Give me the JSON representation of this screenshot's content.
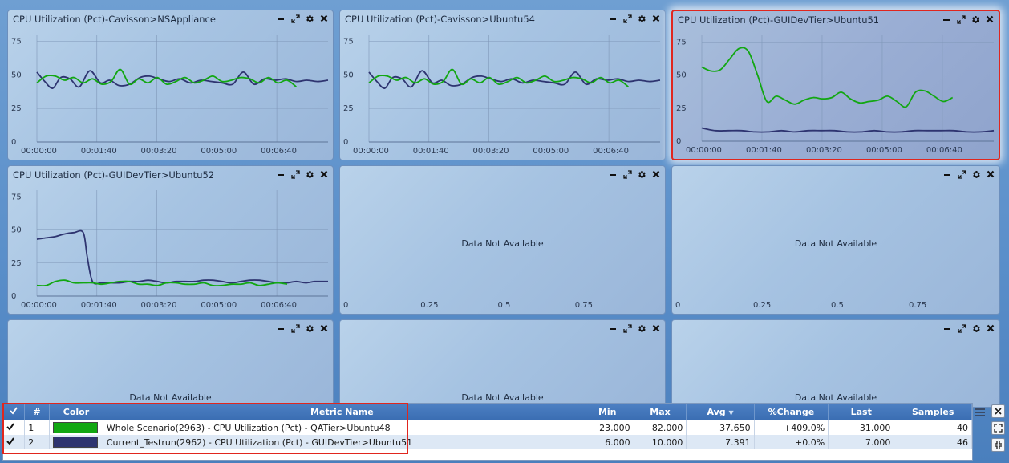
{
  "colors": {
    "series_green": "#12a712",
    "series_navy": "#2e3470",
    "highlight": "#e0261e"
  },
  "icons": {
    "minimize": "minimize-icon",
    "expand": "expand-icon",
    "settings": "gear-icon",
    "close": "close-icon",
    "menu": "menu-icon"
  },
  "panels": [
    {
      "title": "CPU Utilization (Pct)-Cavisson>NSAppliance"
    },
    {
      "title": "CPU Utilization (Pct)-Cavisson>Ubuntu54"
    },
    {
      "title": "CPU Utilization (Pct)-GUIDevTier>Ubuntu51"
    },
    {
      "title": "CPU Utilization (Pct)-GUIDevTier>Ubuntu52"
    },
    {
      "title": "",
      "message": "Data Not Available"
    },
    {
      "title": "",
      "message": "Data Not Available"
    },
    {
      "title": "",
      "message": "Data Not Available"
    },
    {
      "title": "",
      "message": "Data Not Available"
    },
    {
      "title": "",
      "message": "Data Not Available"
    }
  ],
  "chart_data": [
    {
      "type": "line",
      "panel": 0,
      "x_ticks": [
        "00:00:00",
        "00:01:40",
        "00:03:20",
        "00:05:00",
        "00:06:40"
      ],
      "y_ticks": [
        "0",
        "25",
        "50",
        "75"
      ],
      "ylim": [
        0,
        80
      ],
      "xlim": [
        0,
        440
      ],
      "series": [
        {
          "color": "#2e3470",
          "x": [
            0,
            12,
            24,
            36,
            50,
            64,
            80,
            96,
            110,
            124,
            140,
            156,
            170,
            184,
            200,
            216,
            232,
            248,
            264,
            280,
            296,
            312,
            328,
            344,
            360,
            376,
            392,
            408,
            424,
            440
          ],
          "y": [
            52,
            45,
            40,
            48,
            47,
            41,
            53,
            44,
            46,
            42,
            43,
            48,
            49,
            47,
            45,
            47,
            44,
            46,
            45,
            44,
            43,
            52,
            43,
            47,
            46,
            47,
            45,
            46,
            45,
            46
          ]
        },
        {
          "color": "#12a712",
          "x": [
            0,
            14,
            28,
            42,
            56,
            70,
            84,
            98,
            112,
            126,
            140,
            154,
            168,
            182,
            196,
            210,
            224,
            238,
            252,
            266,
            280,
            294,
            308,
            322,
            336,
            350,
            364,
            378,
            392
          ],
          "y": [
            44,
            49,
            49,
            46,
            48,
            44,
            47,
            43,
            45,
            54,
            43,
            47,
            44,
            48,
            43,
            45,
            48,
            44,
            46,
            49,
            45,
            46,
            48,
            47,
            44,
            48,
            44,
            46,
            41
          ]
        }
      ]
    },
    {
      "type": "line",
      "panel": 1,
      "x_ticks": [
        "00:00:00",
        "00:01:40",
        "00:03:20",
        "00:05:00",
        "00:06:40"
      ],
      "y_ticks": [
        "0",
        "25",
        "50",
        "75"
      ],
      "ylim": [
        0,
        80
      ],
      "xlim": [
        0,
        440
      ],
      "series": [
        {
          "color": "#2e3470",
          "x": [
            0,
            12,
            24,
            36,
            50,
            64,
            80,
            96,
            110,
            124,
            140,
            156,
            170,
            184,
            200,
            216,
            232,
            248,
            264,
            280,
            296,
            312,
            328,
            344,
            360,
            376,
            392,
            408,
            424,
            440
          ],
          "y": [
            52,
            45,
            40,
            48,
            47,
            41,
            53,
            44,
            46,
            42,
            43,
            48,
            49,
            47,
            45,
            47,
            44,
            46,
            45,
            44,
            43,
            52,
            43,
            47,
            46,
            47,
            45,
            46,
            45,
            46
          ]
        },
        {
          "color": "#12a712",
          "x": [
            0,
            14,
            28,
            42,
            56,
            70,
            84,
            98,
            112,
            126,
            140,
            154,
            168,
            182,
            196,
            210,
            224,
            238,
            252,
            266,
            280,
            294,
            308,
            322,
            336,
            350,
            364,
            378,
            392
          ],
          "y": [
            44,
            49,
            49,
            46,
            48,
            44,
            47,
            43,
            45,
            54,
            43,
            47,
            44,
            48,
            43,
            45,
            48,
            44,
            46,
            49,
            45,
            46,
            48,
            47,
            44,
            48,
            44,
            46,
            41
          ]
        }
      ]
    },
    {
      "type": "line",
      "panel": 2,
      "x_ticks": [
        "00:00:00",
        "00:01:40",
        "00:03:20",
        "00:05:00",
        "00:06:40"
      ],
      "y_ticks": [
        "0",
        "25",
        "50",
        "75"
      ],
      "ylim": [
        0,
        80
      ],
      "xlim": [
        0,
        440
      ],
      "series": [
        {
          "color": "#12a712",
          "x": [
            0,
            14,
            28,
            42,
            56,
            70,
            84,
            98,
            112,
            126,
            140,
            154,
            168,
            182,
            196,
            210,
            224,
            238,
            252,
            266,
            280,
            294,
            308,
            322,
            336,
            350,
            364,
            378
          ],
          "y": [
            56,
            53,
            54,
            62,
            70,
            68,
            50,
            30,
            34,
            31,
            28,
            31,
            33,
            32,
            33,
            37,
            32,
            29,
            30,
            31,
            34,
            30,
            26,
            37,
            38,
            34,
            30,
            33
          ]
        },
        {
          "color": "#2e3470",
          "x": [
            0,
            20,
            40,
            60,
            80,
            100,
            120,
            140,
            160,
            180,
            200,
            220,
            240,
            260,
            280,
            300,
            320,
            340,
            360,
            380,
            400,
            420,
            440
          ],
          "y": [
            10,
            8,
            8,
            8,
            7,
            7,
            8,
            7,
            8,
            8,
            8,
            7,
            7,
            8,
            7,
            7,
            8,
            8,
            8,
            8,
            7,
            7,
            8
          ]
        }
      ]
    },
    {
      "type": "line",
      "panel": 3,
      "x_ticks": [
        "00:00:00",
        "00:01:40",
        "00:03:20",
        "00:05:00",
        "00:06:40"
      ],
      "y_ticks": [
        "0",
        "25",
        "50",
        "75"
      ],
      "ylim": [
        0,
        80
      ],
      "xlim": [
        0,
        440
      ],
      "series": [
        {
          "color": "#2e3470",
          "x": [
            0,
            14,
            28,
            42,
            56,
            70,
            76,
            84,
            98,
            112,
            126,
            140,
            154,
            168,
            182,
            196,
            210,
            224,
            238,
            252,
            266,
            280,
            294,
            308,
            322,
            336,
            350,
            364,
            378,
            392,
            406,
            420,
            434,
            440
          ],
          "y": [
            43,
            44,
            45,
            47,
            48,
            48,
            30,
            11,
            10,
            10,
            10,
            11,
            11,
            12,
            11,
            10,
            11,
            11,
            11,
            12,
            12,
            11,
            10,
            11,
            12,
            12,
            11,
            10,
            10,
            11,
            10,
            11,
            11,
            11
          ]
        },
        {
          "color": "#12a712",
          "x": [
            0,
            14,
            28,
            42,
            56,
            70,
            84,
            98,
            112,
            126,
            140,
            154,
            168,
            182,
            196,
            210,
            224,
            238,
            252,
            266,
            280,
            294,
            308,
            322,
            336,
            350,
            364,
            378
          ],
          "y": [
            8,
            8,
            11,
            12,
            10,
            10,
            10,
            9,
            10,
            11,
            11,
            9,
            9,
            8,
            10,
            10,
            9,
            9,
            10,
            8,
            8,
            9,
            9,
            10,
            8,
            9,
            10,
            9
          ]
        }
      ]
    },
    {
      "type": "line",
      "panel": 4,
      "x_ticks": [
        "0",
        "0.25",
        "0.5",
        "0.75"
      ],
      "xlim": [
        0,
        1
      ]
    },
    {
      "type": "line",
      "panel": 5,
      "x_ticks": [
        "0",
        "0.25",
        "0.5",
        "0.75"
      ],
      "xlim": [
        0,
        1
      ]
    }
  ],
  "legend": {
    "headers": [
      "#",
      "Color",
      "Metric Name",
      "Min",
      "Max",
      "Avg",
      "%Change",
      "Last",
      "Samples"
    ],
    "rows": [
      {
        "num": "1",
        "color": "#12a712",
        "metric": "Whole Scenario(2963) - CPU Utilization (Pct) - QATier>Ubuntu48",
        "min": "23.000",
        "max": "82.000",
        "avg": "37.650",
        "change": "+409.0%",
        "last": "31.000",
        "samples": "40"
      },
      {
        "num": "2",
        "color": "#2e3470",
        "metric": "Current_Testrun(2962) - CPU Utilization (Pct) - GUIDevTier>Ubuntu51",
        "min": "6.000",
        "max": "10.000",
        "avg": "7.391",
        "change": "+0.0%",
        "last": "7.000",
        "samples": "46"
      }
    ]
  }
}
